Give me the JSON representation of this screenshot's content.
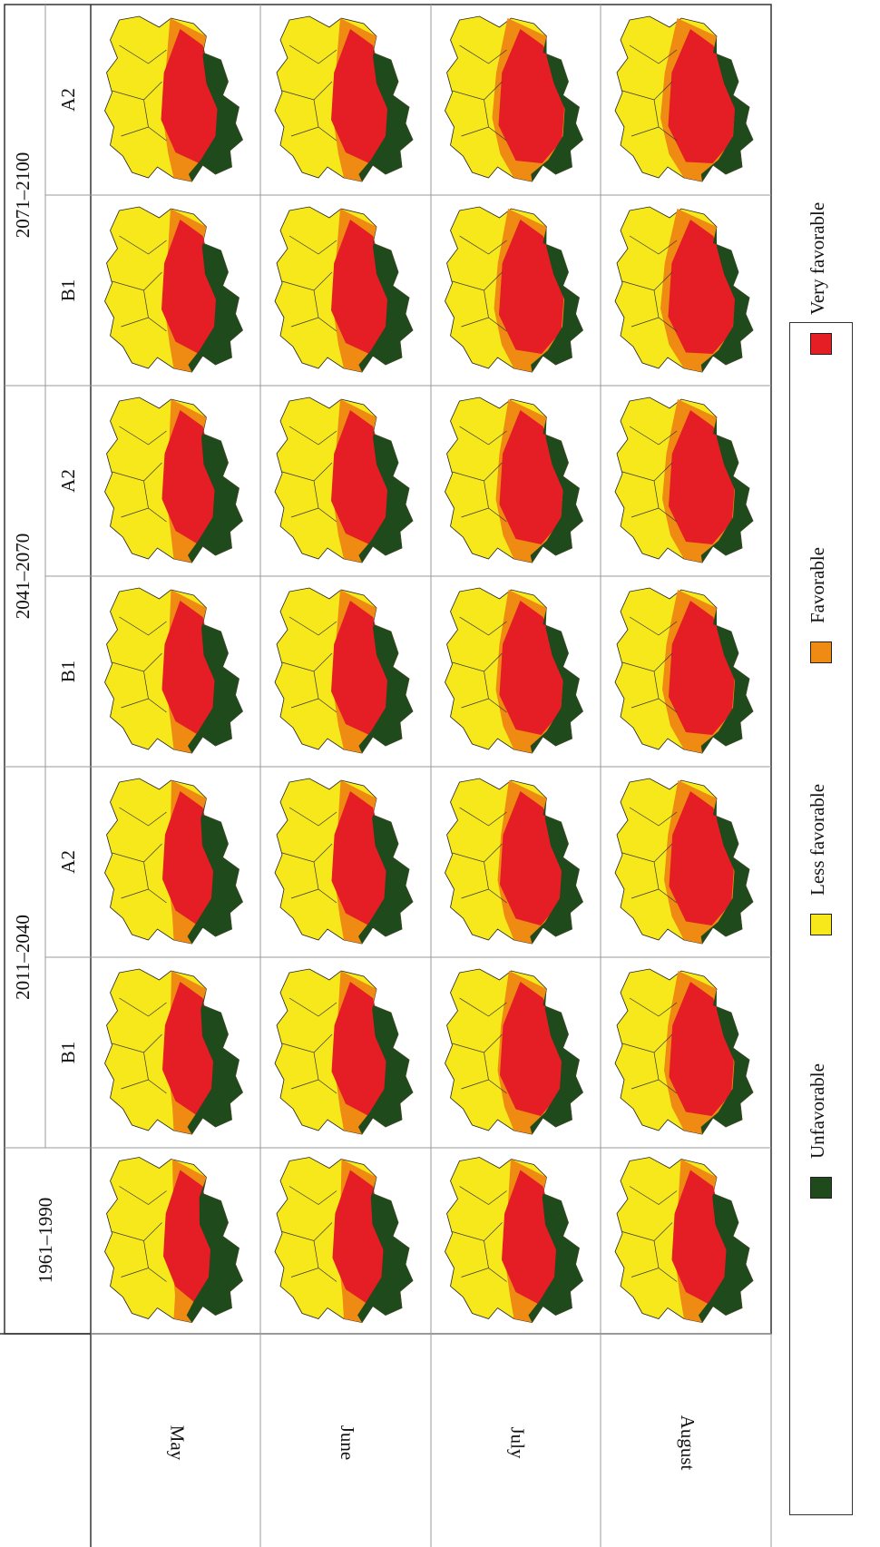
{
  "periods": [
    {
      "label": "1961–1990",
      "scenarios": []
    },
    {
      "label": "2011–2040",
      "scenarios": [
        "B1",
        "A2"
      ]
    },
    {
      "label": "2041–2070",
      "scenarios": [
        "B1",
        "A2"
      ]
    },
    {
      "label": "2071–2100",
      "scenarios": [
        "B1",
        "A2"
      ]
    }
  ],
  "months": [
    "May",
    "June",
    "July",
    "August"
  ],
  "legend": [
    {
      "label": "Unfavorable",
      "color": "#1f4a1c"
    },
    {
      "label": "Less favorable",
      "color": "#f7e81c"
    },
    {
      "label": "Favorable",
      "color": "#ef8a12"
    },
    {
      "label": "Very favorable",
      "color": "#e51d24"
    }
  ],
  "colors": {
    "unfavorable": "#1f4a1c",
    "less_favorable": "#f7e81c",
    "favorable": "#ef8a12",
    "very_favorable": "#e51d24",
    "grid": "#9a9a9a",
    "border": "#333333"
  },
  "map_levels": {
    "description_of_scale": "red zone extent per panel, ordered columns: 1961-1990, 2011-2040 B1, 2011-2040 A2, 2041-2070 B1, 2041-2070 A2, 2071-2100 B1, 2071-2100 A2",
    "May": [
      0.35,
      0.45,
      0.45,
      0.5,
      0.5,
      0.55,
      0.6
    ],
    "June": [
      0.45,
      0.55,
      0.55,
      0.6,
      0.6,
      0.6,
      0.6
    ],
    "July": [
      0.55,
      0.75,
      0.75,
      0.8,
      0.8,
      0.85,
      0.9
    ],
    "August": [
      0.55,
      0.85,
      0.85,
      0.9,
      0.9,
      0.95,
      0.95
    ]
  }
}
